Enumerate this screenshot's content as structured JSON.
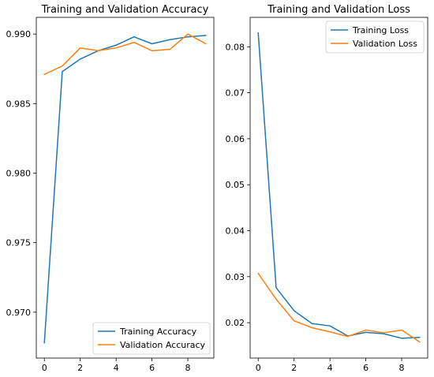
{
  "chart_data": [
    {
      "type": "line",
      "title": "Training and Validation Accuracy",
      "xlabel": "",
      "ylabel": "",
      "xlim": [
        -0.45,
        9.45
      ],
      "ylim": [
        0.9667,
        0.9912
      ],
      "xticks": [
        0,
        2,
        4,
        6,
        8
      ],
      "xtick_labels": [
        "0",
        "2",
        "4",
        "6",
        "8"
      ],
      "yticks": [
        0.97,
        0.975,
        0.98,
        0.985,
        0.99
      ],
      "ytick_labels": [
        "0.970",
        "0.975",
        "0.980",
        "0.985",
        "0.990"
      ],
      "grid": false,
      "legend_position": "lower-right",
      "x": [
        0,
        1,
        2,
        3,
        4,
        5,
        6,
        7,
        8,
        9
      ],
      "series": [
        {
          "name": "Training Accuracy",
          "color": "#1f77b4",
          "values": [
            0.9678,
            0.9873,
            0.9882,
            0.9888,
            0.9892,
            0.9898,
            0.9893,
            0.9896,
            0.9898,
            0.9899
          ]
        },
        {
          "name": "Validation Accuracy",
          "color": "#ff7f0e",
          "values": [
            0.9871,
            0.9877,
            0.989,
            0.9888,
            0.989,
            0.9894,
            0.9888,
            0.9889,
            0.99,
            0.9893
          ]
        }
      ]
    },
    {
      "type": "line",
      "title": "Training and Validation Loss",
      "xlabel": "",
      "ylabel": "",
      "xlim": [
        -0.45,
        9.45
      ],
      "ylim": [
        0.0123,
        0.0864
      ],
      "xticks": [
        0,
        2,
        4,
        6,
        8
      ],
      "xtick_labels": [
        "0",
        "2",
        "4",
        "6",
        "8"
      ],
      "yticks": [
        0.02,
        0.03,
        0.04,
        0.05,
        0.06,
        0.07,
        0.08
      ],
      "ytick_labels": [
        "0.02",
        "0.03",
        "0.04",
        "0.05",
        "0.06",
        "0.07",
        "0.08"
      ],
      "grid": false,
      "legend_position": "upper-right",
      "x": [
        0,
        1,
        2,
        3,
        4,
        5,
        6,
        7,
        8,
        9
      ],
      "series": [
        {
          "name": "Training Loss",
          "color": "#1f77b4",
          "values": [
            0.083,
            0.0276,
            0.0226,
            0.0198,
            0.0193,
            0.0171,
            0.0179,
            0.0176,
            0.0166,
            0.0168
          ]
        },
        {
          "name": "Validation Loss",
          "color": "#ff7f0e",
          "values": [
            0.0307,
            0.0251,
            0.0204,
            0.0189,
            0.018,
            0.017,
            0.0184,
            0.0178,
            0.0184,
            0.0158
          ]
        }
      ]
    }
  ]
}
